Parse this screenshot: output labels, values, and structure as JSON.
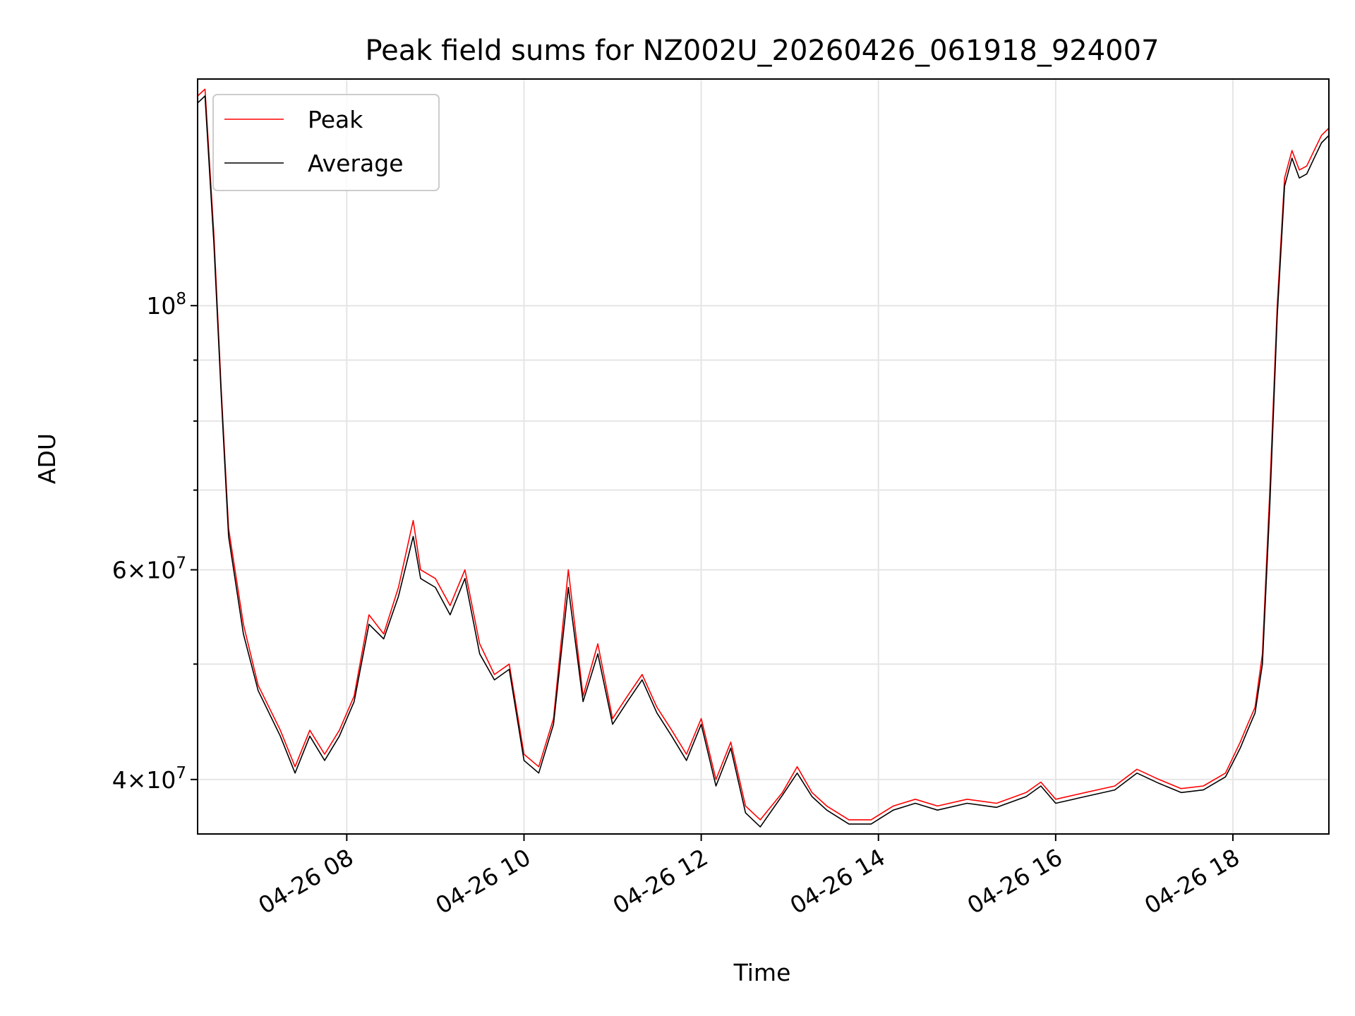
{
  "chart_data": {
    "type": "line",
    "title": "Peak field sums for NZ002U_20260426_061918_924007",
    "xlabel": "Time",
    "ylabel": "ADU",
    "yscale": "log",
    "grid": true,
    "legend_position": "top-left",
    "xlim": [
      "2026-04-26 06:19",
      "2026-04-26 19:05"
    ],
    "ylim": [
      36000000,
      155000000
    ],
    "x_ticks": [
      "04-26 08",
      "04-26 10",
      "04-26 12",
      "04-26 14",
      "04-26 16",
      "04-26 18"
    ],
    "y_ticks": [
      {
        "value": 40000000,
        "mantissa": "4",
        "exp": "7"
      },
      {
        "value": 60000000,
        "mantissa": "6",
        "exp": "7"
      },
      {
        "value": 100000000,
        "mantissa": "",
        "exp": "8"
      }
    ],
    "y_minor_ticks": [
      50000000,
      70000000,
      80000000,
      90000000
    ],
    "series": [
      {
        "name": "Peak",
        "color": "#ff0000",
        "x": [
          "2026-04-26 06:19",
          "2026-04-26 06:24",
          "2026-04-26 06:30",
          "2026-04-26 06:35",
          "2026-04-26 06:40",
          "2026-04-26 06:50",
          "2026-04-26 07:00",
          "2026-04-26 07:15",
          "2026-04-26 07:25",
          "2026-04-26 07:35",
          "2026-04-26 07:45",
          "2026-04-26 07:55",
          "2026-04-26 08:05",
          "2026-04-26 08:15",
          "2026-04-26 08:25",
          "2026-04-26 08:35",
          "2026-04-26 08:45",
          "2026-04-26 08:50",
          "2026-04-26 09:00",
          "2026-04-26 09:10",
          "2026-04-26 09:20",
          "2026-04-26 09:30",
          "2026-04-26 09:40",
          "2026-04-26 09:50",
          "2026-04-26 10:00",
          "2026-04-26 10:10",
          "2026-04-26 10:20",
          "2026-04-26 10:30",
          "2026-04-26 10:40",
          "2026-04-26 10:50",
          "2026-04-26 11:00",
          "2026-04-26 11:10",
          "2026-04-26 11:20",
          "2026-04-26 11:30",
          "2026-04-26 11:40",
          "2026-04-26 11:50",
          "2026-04-26 12:00",
          "2026-04-26 12:10",
          "2026-04-26 12:20",
          "2026-04-26 12:30",
          "2026-04-26 12:40",
          "2026-04-26 12:55",
          "2026-04-26 13:05",
          "2026-04-26 13:15",
          "2026-04-26 13:25",
          "2026-04-26 13:40",
          "2026-04-26 13:55",
          "2026-04-26 14:10",
          "2026-04-26 14:25",
          "2026-04-26 14:40",
          "2026-04-26 15:00",
          "2026-04-26 15:20",
          "2026-04-26 15:40",
          "2026-04-26 15:50",
          "2026-04-26 16:00",
          "2026-04-26 16:20",
          "2026-04-26 16:40",
          "2026-04-26 16:55",
          "2026-04-26 17:10",
          "2026-04-26 17:25",
          "2026-04-26 17:40",
          "2026-04-26 17:55",
          "2026-04-26 18:05",
          "2026-04-26 18:10",
          "2026-04-26 18:15",
          "2026-04-26 18:20",
          "2026-04-26 18:25",
          "2026-04-26 18:30",
          "2026-04-26 18:35",
          "2026-04-26 18:40",
          "2026-04-26 18:45",
          "2026-04-26 18:50",
          "2026-04-26 18:55",
          "2026-04-26 19:00",
          "2026-04-26 19:05"
        ],
        "y": [
          150000000,
          152000000,
          115000000,
          85000000,
          65000000,
          54000000,
          48000000,
          44000000,
          41000000,
          44000000,
          42000000,
          44000000,
          47000000,
          55000000,
          53000000,
          58000000,
          66000000,
          60000000,
          59000000,
          56000000,
          60000000,
          52000000,
          49000000,
          50000000,
          42000000,
          41000000,
          45000000,
          60000000,
          47000000,
          52000000,
          45000000,
          47000000,
          49000000,
          46000000,
          44000000,
          42000000,
          45000000,
          40000000,
          43000000,
          38000000,
          37000000,
          39000000,
          41000000,
          39000000,
          38000000,
          37000000,
          37000000,
          38000000,
          38500000,
          38000000,
          38500000,
          38200000,
          39000000,
          39800000,
          38500000,
          39000000,
          39500000,
          40800000,
          40000000,
          39300000,
          39500000,
          40500000,
          43000000,
          44500000,
          46000000,
          51000000,
          70000000,
          100000000,
          128000000,
          135000000,
          130000000,
          131000000,
          135000000,
          139000000,
          141000000
        ]
      },
      {
        "name": "Average",
        "color": "#000000",
        "x": [
          "2026-04-26 06:19",
          "2026-04-26 06:24",
          "2026-04-26 06:30",
          "2026-04-26 06:35",
          "2026-04-26 06:40",
          "2026-04-26 06:50",
          "2026-04-26 07:00",
          "2026-04-26 07:15",
          "2026-04-26 07:25",
          "2026-04-26 07:35",
          "2026-04-26 07:45",
          "2026-04-26 07:55",
          "2026-04-26 08:05",
          "2026-04-26 08:15",
          "2026-04-26 08:25",
          "2026-04-26 08:35",
          "2026-04-26 08:45",
          "2026-04-26 08:50",
          "2026-04-26 09:00",
          "2026-04-26 09:10",
          "2026-04-26 09:20",
          "2026-04-26 09:30",
          "2026-04-26 09:40",
          "2026-04-26 09:50",
          "2026-04-26 10:00",
          "2026-04-26 10:10",
          "2026-04-26 10:20",
          "2026-04-26 10:30",
          "2026-04-26 10:40",
          "2026-04-26 10:50",
          "2026-04-26 11:00",
          "2026-04-26 11:10",
          "2026-04-26 11:20",
          "2026-04-26 11:30",
          "2026-04-26 11:40",
          "2026-04-26 11:50",
          "2026-04-26 12:00",
          "2026-04-26 12:10",
          "2026-04-26 12:20",
          "2026-04-26 12:30",
          "2026-04-26 12:40",
          "2026-04-26 12:55",
          "2026-04-26 13:05",
          "2026-04-26 13:15",
          "2026-04-26 13:25",
          "2026-04-26 13:40",
          "2026-04-26 13:55",
          "2026-04-26 14:10",
          "2026-04-26 14:25",
          "2026-04-26 14:40",
          "2026-04-26 15:00",
          "2026-04-26 15:20",
          "2026-04-26 15:40",
          "2026-04-26 15:50",
          "2026-04-26 16:00",
          "2026-04-26 16:20",
          "2026-04-26 16:40",
          "2026-04-26 16:55",
          "2026-04-26 17:10",
          "2026-04-26 17:25",
          "2026-04-26 17:40",
          "2026-04-26 17:55",
          "2026-04-26 18:05",
          "2026-04-26 18:10",
          "2026-04-26 18:15",
          "2026-04-26 18:20",
          "2026-04-26 18:25",
          "2026-04-26 18:30",
          "2026-04-26 18:35",
          "2026-04-26 18:40",
          "2026-04-26 18:45",
          "2026-04-26 18:50",
          "2026-04-26 18:55",
          "2026-04-26 19:00",
          "2026-04-26 19:05"
        ],
        "y": [
          148000000,
          150000000,
          113000000,
          84000000,
          64000000,
          53000000,
          47500000,
          43500000,
          40500000,
          43500000,
          41500000,
          43500000,
          46500000,
          54000000,
          52500000,
          57000000,
          64000000,
          59000000,
          58000000,
          55000000,
          59000000,
          51000000,
          48500000,
          49500000,
          41500000,
          40500000,
          44500000,
          58000000,
          46500000,
          51000000,
          44500000,
          46500000,
          48500000,
          45500000,
          43500000,
          41500000,
          44500000,
          39500000,
          42500000,
          37500000,
          36500000,
          38800000,
          40500000,
          38700000,
          37700000,
          36700000,
          36700000,
          37700000,
          38200000,
          37700000,
          38200000,
          37900000,
          38700000,
          39500000,
          38200000,
          38700000,
          39200000,
          40500000,
          39700000,
          39000000,
          39200000,
          40200000,
          42500000,
          44000000,
          45500000,
          50000000,
          68000000,
          98000000,
          126000000,
          133000000,
          128000000,
          129000000,
          133000000,
          137000000,
          139000000
        ]
      }
    ]
  }
}
